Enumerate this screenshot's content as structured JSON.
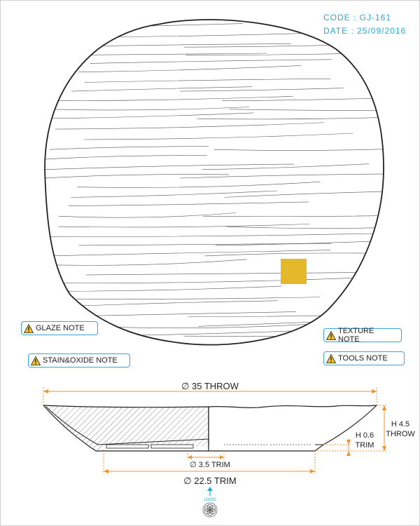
{
  "header": {
    "code": "CODE : GJ-161",
    "date": "DATE : 25/09/2016"
  },
  "notes": {
    "glaze": "GLAZE NOTE",
    "stain_oxide": "STAIN&OXIDE NOTE",
    "texture": "TEXTURE NOTE",
    "tools": "TOOLS NOTE",
    "icon": "warning-icon"
  },
  "dimensions": {
    "diameter_throw": "∅ 35 THROW",
    "height_throw": [
      "H 4.5",
      "THROW"
    ],
    "height_trim": [
      "H 0.6",
      "TRIM"
    ],
    "foot_trim": "∅ 3.5 TRIM",
    "base_trim": "∅ 22.5 TRIM"
  },
  "logo": {
    "label": "LOGO",
    "icon": "flower-of-life-icon"
  },
  "colors": {
    "accent": "#2aa8d6",
    "dimension": "#f0932b",
    "swatch": "#e5b72a",
    "line": "#222222"
  }
}
